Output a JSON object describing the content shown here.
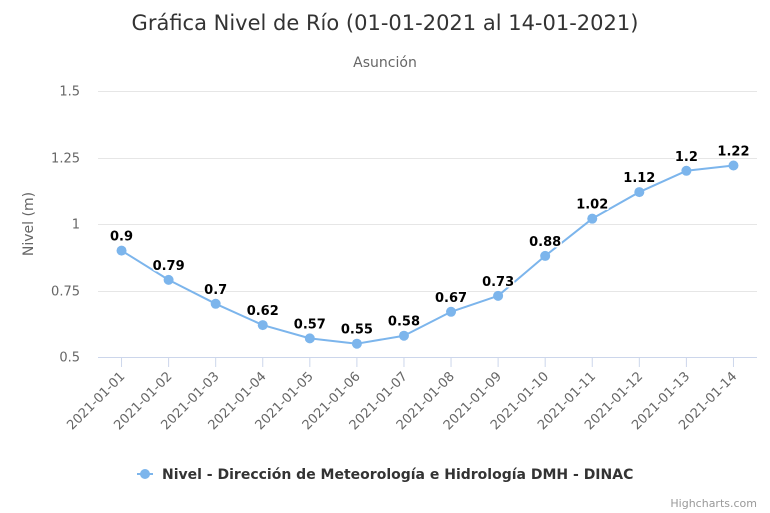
{
  "chart_data": {
    "type": "line",
    "title": "Gráfica Nivel de Río (01-01-2021 al 14-01-2021)",
    "subtitle": "Asunción",
    "xlabel": "",
    "ylabel": "Nivel (m)",
    "ylim": [
      0.5,
      1.5
    ],
    "yticks": [
      0.5,
      0.75,
      1,
      1.25,
      1.5
    ],
    "ytick_labels": [
      "0.5",
      "0.75",
      "1",
      "1.25",
      "1.5"
    ],
    "categories": [
      "2021-01-01",
      "2021-01-02",
      "2021-01-03",
      "2021-01-04",
      "2021-01-05",
      "2021-01-06",
      "2021-01-07",
      "2021-01-08",
      "2021-01-09",
      "2021-01-10",
      "2021-01-11",
      "2021-01-12",
      "2021-01-13",
      "2021-01-14"
    ],
    "series": [
      {
        "name": "Nivel - Dirección de Meteorología e Hidrología DMH - DINAC",
        "values": [
          0.9,
          0.79,
          0.7,
          0.62,
          0.57,
          0.55,
          0.58,
          0.67,
          0.73,
          0.88,
          1.02,
          1.12,
          1.2,
          1.22
        ],
        "labels": [
          "0.9",
          "0.79",
          "0.7",
          "0.62",
          "0.57",
          "0.55",
          "0.58",
          "0.67",
          "0.73",
          "0.88",
          "1.02",
          "1.12",
          "1.2",
          "1.22"
        ],
        "color": "#7cb5ec"
      }
    ],
    "grid": true,
    "legend": "bottom-center",
    "credits": "Highcharts.com"
  }
}
